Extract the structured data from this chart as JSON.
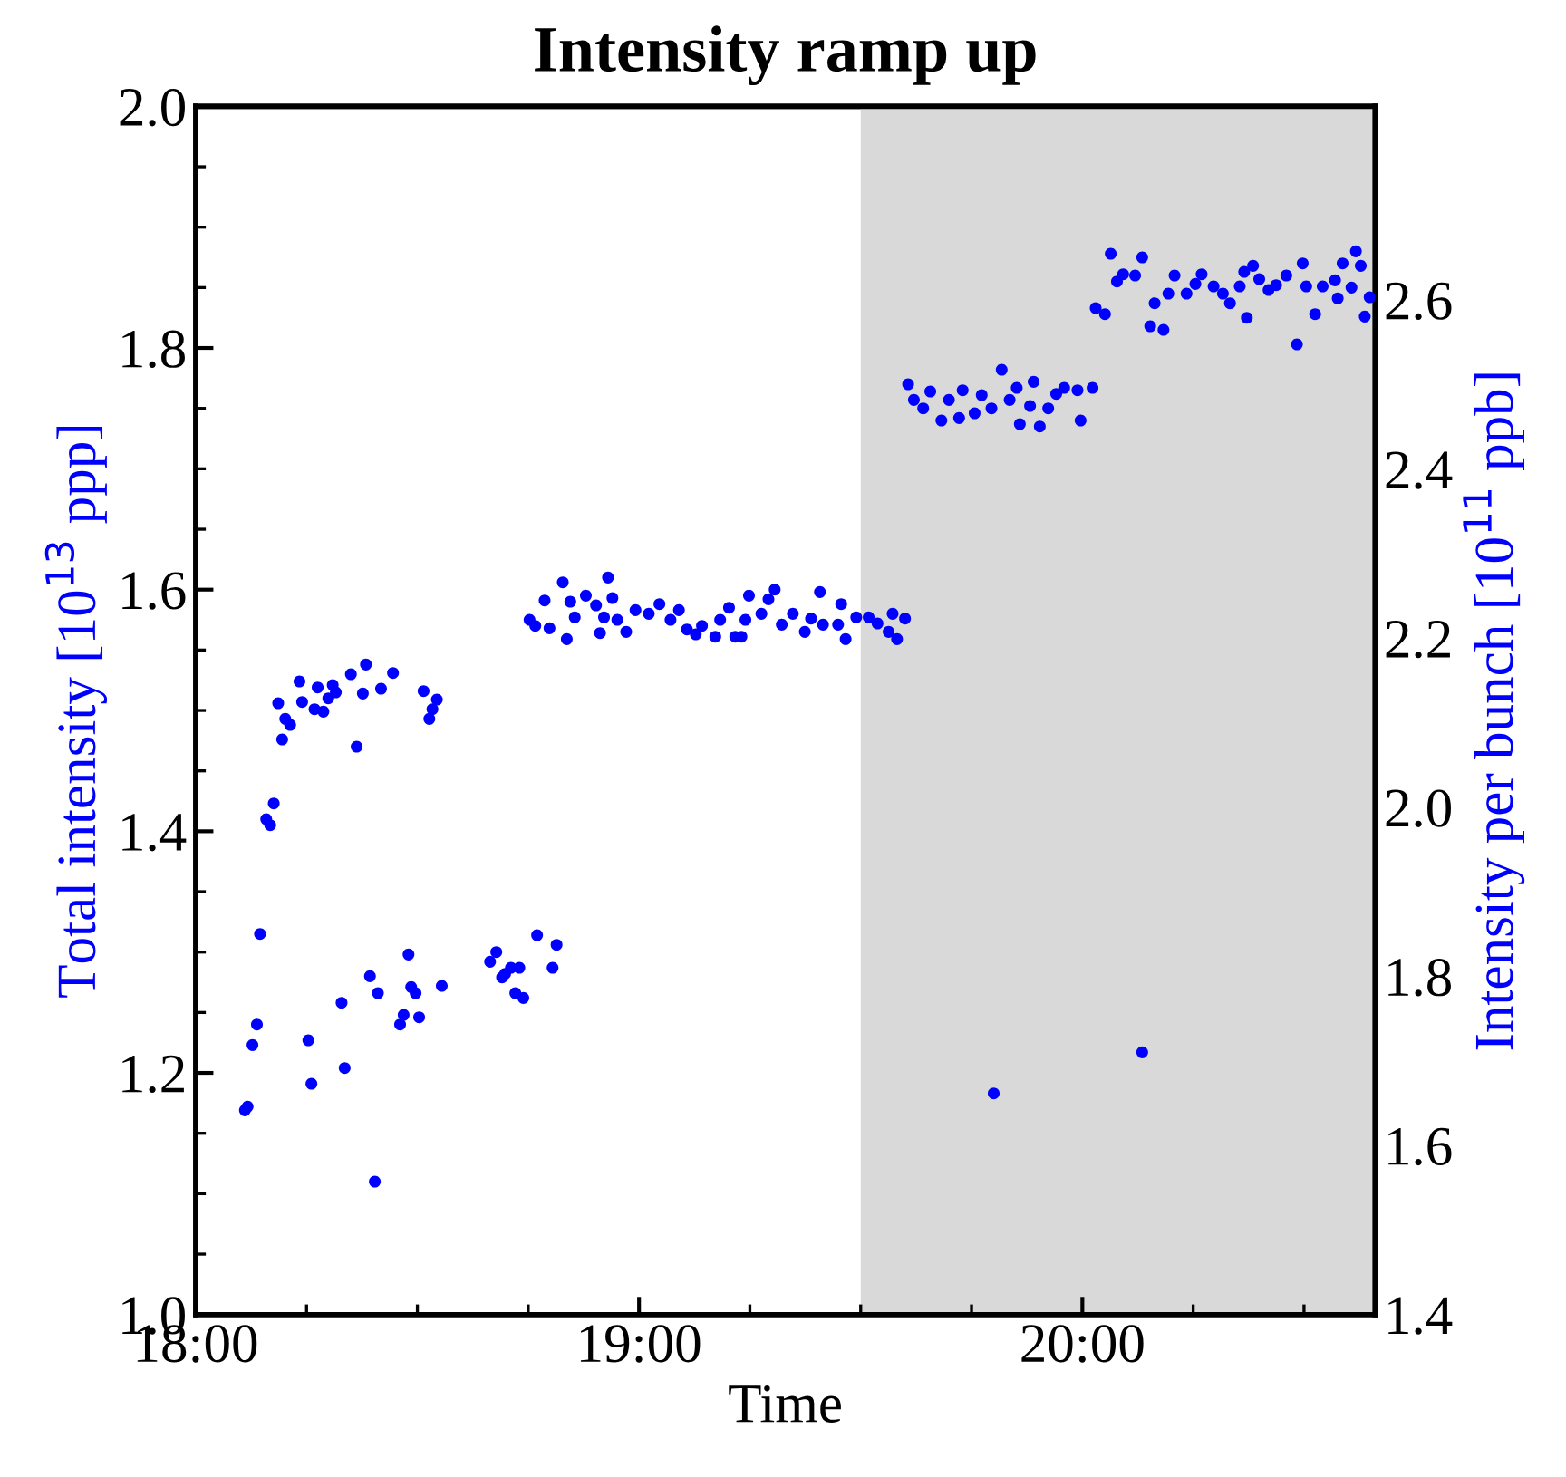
{
  "chart_data": {
    "type": "scatter",
    "title": "Intensity ramp up",
    "xlabel": "Time",
    "ylabel": "Total intensity [10$^{13}$ ppp]",
    "y2label": "Intensity per bunch [10$^{11}$ ppb]",
    "xlim": [
      18.0,
      20.66
    ],
    "ylim": [
      1.0,
      2.0
    ],
    "y2lim": [
      1.4,
      2.829
    ],
    "xticks": [
      {
        "value": 18.0,
        "label": "18:00"
      },
      {
        "value": 18.25,
        "label": null
      },
      {
        "value": 18.5,
        "label": null
      },
      {
        "value": 18.75,
        "label": null
      },
      {
        "value": 19.0,
        "label": "19:00"
      },
      {
        "value": 19.25,
        "label": null
      },
      {
        "value": 19.5,
        "label": null
      },
      {
        "value": 19.75,
        "label": null
      },
      {
        "value": 20.0,
        "label": "20:00"
      },
      {
        "value": 20.25,
        "label": null
      },
      {
        "value": 20.5,
        "label": null
      }
    ],
    "yticks": [
      {
        "value": 1.0,
        "label": "1.0"
      },
      {
        "value": 1.05,
        "label": null
      },
      {
        "value": 1.1,
        "label": null
      },
      {
        "value": 1.15,
        "label": null
      },
      {
        "value": 1.2,
        "label": "1.2"
      },
      {
        "value": 1.25,
        "label": null
      },
      {
        "value": 1.3,
        "label": null
      },
      {
        "value": 1.35,
        "label": null
      },
      {
        "value": 1.4,
        "label": "1.4"
      },
      {
        "value": 1.45,
        "label": null
      },
      {
        "value": 1.5,
        "label": null
      },
      {
        "value": 1.55,
        "label": null
      },
      {
        "value": 1.6,
        "label": "1.6"
      },
      {
        "value": 1.65,
        "label": null
      },
      {
        "value": 1.7,
        "label": null
      },
      {
        "value": 1.75,
        "label": null
      },
      {
        "value": 1.8,
        "label": "1.8"
      },
      {
        "value": 1.85,
        "label": null
      },
      {
        "value": 1.9,
        "label": null
      },
      {
        "value": 1.95,
        "label": null
      },
      {
        "value": 2.0,
        "label": "2.0"
      }
    ],
    "y2ticks": [
      {
        "value": 1.4,
        "label": "1.4"
      },
      {
        "value": 1.5,
        "label": null
      },
      {
        "value": 1.6,
        "label": "1.6"
      },
      {
        "value": 1.7,
        "label": null
      },
      {
        "value": 1.8,
        "label": "1.8"
      },
      {
        "value": 1.9,
        "label": null
      },
      {
        "value": 2.0,
        "label": "2.0"
      },
      {
        "value": 2.1,
        "label": null
      },
      {
        "value": 2.2,
        "label": "2.2"
      },
      {
        "value": 2.3,
        "label": null
      },
      {
        "value": 2.4,
        "label": "2.4"
      },
      {
        "value": 2.5,
        "label": null
      },
      {
        "value": 2.6,
        "label": "2.6"
      },
      {
        "value": 2.7,
        "label": null
      },
      {
        "value": 2.8,
        "label": null
      }
    ],
    "bands": [
      {
        "axis": "x",
        "from": 19.5,
        "to": 20.66,
        "color": "#d9d9d9"
      }
    ],
    "grid": false,
    "marker": "circle",
    "series": [
      {
        "color": "#0000ff",
        "x": [
          18.384,
          18.35,
          18.445,
          18.234,
          18.275,
          18.309,
          18.316,
          18.418,
          18.186,
          18.24,
          18.299,
          18.377,
          18.514,
          18.544,
          18.534,
          18.527,
          18.268,
          18.288,
          18.202,
          18.213,
          18.195,
          18.363,
          18.176,
          18.159,
          18.168,
          18.145,
          18.138,
          18.128,
          18.111,
          18.117,
          18.254,
          18.261,
          18.329,
          18.336,
          18.393,
          18.411,
          18.404,
          18.48,
          18.486,
          18.496,
          18.469,
          18.461,
          18.504,
          18.555,
          18.664,
          18.678,
          18.698,
          18.691,
          18.711,
          18.73,
          18.721,
          18.739,
          18.77,
          18.814,
          18.805,
          18.753,
          18.766,
          18.798,
          18.787,
          18.828,
          18.837,
          18.845,
          18.855,
          18.88,
          18.903,
          18.912,
          18.921,
          18.93,
          18.94,
          18.951,
          18.971,
          18.992,
          19.022,
          19.046,
          19.071,
          19.09,
          19.108,
          19.128,
          19.142,
          19.172,
          19.183,
          19.203,
          19.217,
          19.231,
          19.24,
          19.248,
          19.276,
          19.292,
          19.306,
          19.322,
          19.347,
          19.374,
          19.388,
          19.408,
          19.415,
          19.449,
          19.456,
          19.466,
          19.49,
          19.518,
          19.538,
          19.563,
          19.572,
          19.582,
          19.6,
          19.607,
          19.62,
          19.641,
          19.657,
          19.682,
          19.699,
          19.722,
          19.73,
          19.757,
          19.773,
          19.795,
          19.818,
          19.836,
          19.859,
          19.852,
          19.89,
          19.882,
          19.904,
          19.923,
          19.941,
          19.959,
          19.989,
          19.996,
          20.023,
          20.03,
          20.051,
          20.064,
          20.078,
          20.092,
          20.119,
          20.135,
          20.153,
          20.163,
          20.183,
          20.194,
          20.208,
          20.235,
          20.255,
          20.269,
          20.296,
          20.317,
          20.333,
          20.355,
          20.365,
          20.371,
          20.385,
          20.399,
          20.42,
          20.437,
          20.46,
          20.484,
          20.497,
          20.505,
          20.525,
          20.542,
          20.57,
          20.576,
          20.587,
          20.607,
          20.617,
          20.628,
          20.637,
          20.648,
          19.8,
          20.135
        ],
        "values": [
          1.538,
          1.53,
          1.531,
          1.524,
          1.519,
          1.521,
          1.515,
          1.518,
          1.506,
          1.507,
          1.51,
          1.514,
          1.516,
          1.509,
          1.501,
          1.493,
          1.501,
          1.499,
          1.493,
          1.488,
          1.476,
          1.47,
          1.423,
          1.41,
          1.405,
          1.315,
          1.24,
          1.223,
          1.169,
          1.172,
          1.227,
          1.191,
          1.258,
          1.204,
          1.28,
          1.266,
          1.11,
          1.298,
          1.271,
          1.266,
          1.248,
          1.24,
          1.246,
          1.272,
          1.292,
          1.3,
          1.282,
          1.279,
          1.287,
          1.287,
          1.266,
          1.262,
          1.314,
          1.306,
          1.287,
          1.575,
          1.57,
          1.568,
          1.591,
          1.606,
          1.559,
          1.59,
          1.577,
          1.595,
          1.587,
          1.564,
          1.577,
          1.61,
          1.593,
          1.575,
          1.565,
          1.583,
          1.58,
          1.588,
          1.575,
          1.583,
          1.567,
          1.563,
          1.57,
          1.561,
          1.575,
          1.585,
          1.561,
          1.561,
          1.575,
          1.595,
          1.58,
          1.592,
          1.6,
          1.571,
          1.58,
          1.565,
          1.576,
          1.598,
          1.571,
          1.571,
          1.588,
          1.559,
          1.577,
          1.577,
          1.572,
          1.565,
          1.58,
          1.559,
          1.576,
          1.77,
          1.757,
          1.75,
          1.764,
          1.74,
          1.757,
          1.742,
          1.765,
          1.746,
          1.761,
          1.75,
          1.782,
          1.757,
          1.737,
          1.767,
          1.772,
          1.752,
          1.735,
          1.75,
          1.762,
          1.767,
          1.765,
          1.74,
          1.767,
          1.833,
          1.828,
          1.878,
          1.855,
          1.861,
          1.86,
          1.875,
          1.818,
          1.837,
          1.815,
          1.845,
          1.86,
          1.845,
          1.853,
          1.861,
          1.851,
          1.845,
          1.837,
          1.851,
          1.863,
          1.825,
          1.868,
          1.857,
          1.848,
          1.852,
          1.86,
          1.803,
          1.87,
          1.851,
          1.828,
          1.851,
          1.856,
          1.841,
          1.87,
          1.85,
          1.88,
          1.868,
          1.826,
          1.842,
          1.183,
          1.217
        ]
      }
    ]
  }
}
